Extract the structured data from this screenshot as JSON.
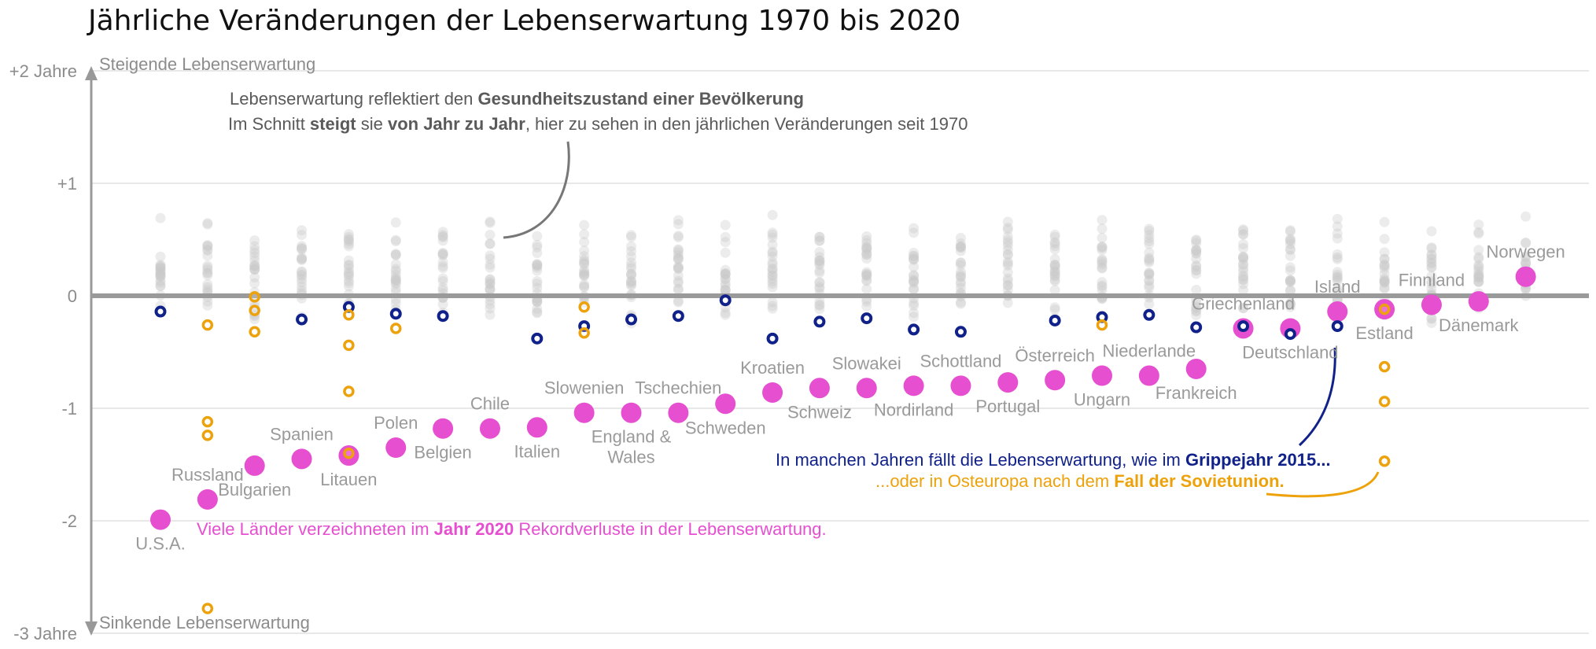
{
  "chart_data": {
    "type": "scatter",
    "title": "Jährliche Veränderungen der Lebenserwartung 1970 bis 2020",
    "ylim": [
      -3,
      2
    ],
    "grid": true,
    "y_ticks": [
      {
        "value": 2,
        "label": "+2 Jahre"
      },
      {
        "value": 1,
        "label": "+1"
      },
      {
        "value": 0,
        "label": "0"
      },
      {
        "value": -1,
        "label": "-1"
      },
      {
        "value": -2,
        "label": "-2"
      },
      {
        "value": -3,
        "label": "-3 Jahre"
      }
    ],
    "axis_top_label": "Steigende Lebenserwartung",
    "axis_bottom_label": "Sinkende Lebenserwartung",
    "countries": [
      {
        "name": "U.S.A.",
        "label_pos": "below",
        "y2020": -1.99,
        "flu2015": -0.14,
        "soviet": []
      },
      {
        "name": "Russland",
        "label_pos": "above",
        "y2020": -1.81,
        "flu2015": null,
        "soviet": [
          -0.26,
          -1.12,
          -1.24,
          -2.78
        ]
      },
      {
        "name": "Bulgarien",
        "label_pos": "below",
        "y2020": -1.51,
        "flu2015": null,
        "soviet": [
          -0.01,
          -0.13,
          -0.32
        ]
      },
      {
        "name": "Spanien",
        "label_pos": "above",
        "y2020": -1.45,
        "flu2015": -0.21,
        "soviet": []
      },
      {
        "name": "Litauen",
        "label_pos": "below",
        "y2020": -1.42,
        "flu2015": -0.1,
        "soviet": [
          -0.17,
          -0.44,
          -0.85,
          -1.4
        ]
      },
      {
        "name": "Polen",
        "label_pos": "above",
        "y2020": -1.35,
        "flu2015": -0.16,
        "soviet": [
          -0.29
        ]
      },
      {
        "name": "Belgien",
        "label_pos": "below",
        "y2020": -1.18,
        "flu2015": -0.18,
        "soviet": []
      },
      {
        "name": "Chile",
        "label_pos": "above",
        "y2020": -1.18,
        "flu2015": null,
        "soviet": []
      },
      {
        "name": "Italien",
        "label_pos": "below",
        "y2020": -1.17,
        "flu2015": -0.38,
        "soviet": []
      },
      {
        "name": "Slowenien",
        "label_pos": "above",
        "y2020": -1.04,
        "flu2015": -0.27,
        "soviet": [
          -0.1,
          -0.33
        ]
      },
      {
        "name": "England & Wales",
        "label_pos": "below",
        "y2020": -1.04,
        "flu2015": -0.21,
        "soviet": []
      },
      {
        "name": "Tschechien",
        "label_pos": "above",
        "y2020": -1.04,
        "flu2015": -0.18,
        "soviet": []
      },
      {
        "name": "Schweden",
        "label_pos": "below",
        "y2020": -0.96,
        "flu2015": -0.04,
        "soviet": []
      },
      {
        "name": "Kroatien",
        "label_pos": "above",
        "y2020": -0.86,
        "flu2015": -0.38,
        "soviet": []
      },
      {
        "name": "Schweiz",
        "label_pos": "below",
        "y2020": -0.82,
        "flu2015": -0.23,
        "soviet": []
      },
      {
        "name": "Slowakei",
        "label_pos": "above",
        "y2020": -0.82,
        "flu2015": -0.2,
        "soviet": []
      },
      {
        "name": "Nordirland",
        "label_pos": "below",
        "y2020": -0.8,
        "flu2015": -0.3,
        "soviet": []
      },
      {
        "name": "Schottland",
        "label_pos": "above",
        "y2020": -0.8,
        "flu2015": -0.32,
        "soviet": []
      },
      {
        "name": "Portugal",
        "label_pos": "below",
        "y2020": -0.77,
        "flu2015": null,
        "soviet": []
      },
      {
        "name": "Österreich",
        "label_pos": "above",
        "y2020": -0.75,
        "flu2015": -0.22,
        "soviet": []
      },
      {
        "name": "Ungarn",
        "label_pos": "below",
        "y2020": -0.71,
        "flu2015": -0.19,
        "soviet": [
          -0.26
        ]
      },
      {
        "name": "Niederlande",
        "label_pos": "above",
        "y2020": -0.71,
        "flu2015": -0.17,
        "soviet": []
      },
      {
        "name": "Frankreich",
        "label_pos": "below",
        "y2020": -0.65,
        "flu2015": -0.28,
        "soviet": []
      },
      {
        "name": "Griechenland",
        "label_pos": "above",
        "y2020": -0.29,
        "flu2015": -0.27,
        "soviet": []
      },
      {
        "name": "Deutschland",
        "label_pos": "below",
        "y2020": -0.29,
        "flu2015": -0.34,
        "soviet": []
      },
      {
        "name": "Island",
        "label_pos": "above",
        "y2020": -0.14,
        "flu2015": -0.27,
        "soviet": []
      },
      {
        "name": "Estland",
        "label_pos": "below",
        "y2020": -0.12,
        "flu2015": null,
        "soviet": [
          -0.12,
          -0.63,
          -0.94,
          -1.47
        ]
      },
      {
        "name": "Finnland",
        "label_pos": "above",
        "y2020": -0.08,
        "flu2015": null,
        "soviet": []
      },
      {
        "name": "Dänemark",
        "label_pos": "below",
        "y2020": -0.05,
        "flu2015": null,
        "soviet": []
      },
      {
        "name": "Norwegen",
        "label_pos": "above",
        "y2020": 0.17,
        "flu2015": null,
        "soviet": []
      }
    ]
  },
  "annotations": {
    "intro_line1_a": "Lebenserwartung  reflektiert den ",
    "intro_line1_b": "Gesundheitszustand einer Bevölkerung",
    "intro_line2_a": "Im Schnitt ",
    "intro_line2_b": "steigt",
    "intro_line2_c": " sie ",
    "intro_line2_d": "von Jahr zu Jahr",
    "intro_line2_e": ", hier zu sehen in den jährlichen Veränderungen seit 1970",
    "flu_a": "In manchen Jahren fällt die Lebenserwartung, wie im ",
    "flu_b": "Grippejahr 2015...",
    "soviet_a": "...oder in Osteuropa nach dem ",
    "soviet_b": "Fall der Sovietunion.",
    "record_a": "Viele Länder verzeichneten im ",
    "record_b": "Jahr 2020",
    "record_c": " Rekordverluste in der Lebenserwartung."
  },
  "colors": {
    "year2020": "#e64fd0",
    "flu2015": "#10228a",
    "soviet": "#eda20c",
    "background_points": "#c8c8c8",
    "zero_line": "#9a9a9a",
    "grid": "#d9d9d9",
    "axis_text": "#8c8c8c",
    "country_label": "#9a9a9a",
    "intro_text": "#5a5a5a"
  }
}
